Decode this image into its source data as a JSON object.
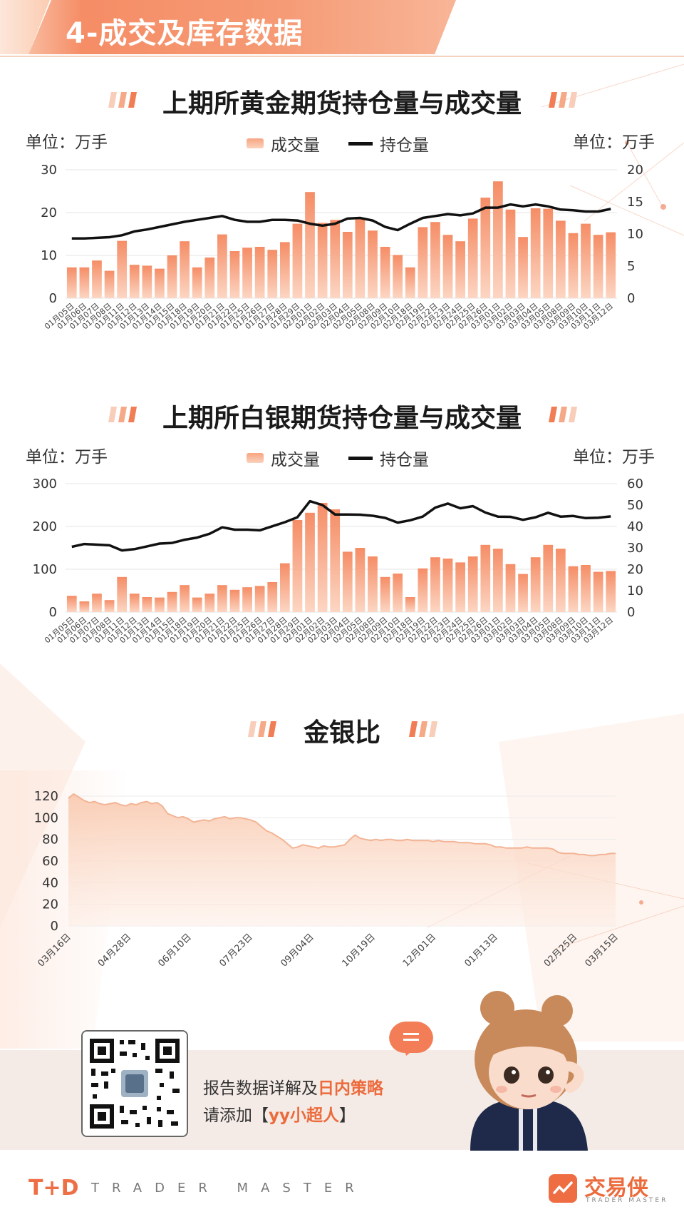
{
  "header": {
    "title": "4-成交及库存数据"
  },
  "gold": {
    "title": "上期所黄金期货持仓量与成交量",
    "unit_left": "单位：万手",
    "unit_right": "单位：万手",
    "legend_bar": "成交量",
    "legend_line": "持仓量"
  },
  "silver": {
    "title": "上期所白银期货持仓量与成交量",
    "unit_left": "单位：万手",
    "unit_right": "单位：万手",
    "legend_bar": "成交量",
    "legend_line": "持仓量"
  },
  "ratio": {
    "title": "金银比"
  },
  "promo": {
    "line1_prefix": "报告数据详解及",
    "line1_highlight": "日内策略",
    "line2_prefix": "请添加【",
    "line2_highlight": "yy小超人",
    "line2_suffix": "】"
  },
  "footer": {
    "logo": "T+D",
    "logo_sub": "TRADER MASTER",
    "brand": "交易侠",
    "brand_sub": "TRADER MASTER"
  },
  "colors": {
    "accent": "#f27d56",
    "bar_top": "#f58d66",
    "bar_bottom": "#fcd6c3",
    "line": "#111111"
  },
  "chart_data": [
    {
      "type": "bar",
      "name": "gold",
      "categories": [
        "01月05日",
        "01月06日",
        "01月07日",
        "01月08日",
        "01月11日",
        "01月12日",
        "01月13日",
        "01月14日",
        "01月15日",
        "01月18日",
        "01月19日",
        "01月20日",
        "01月21日",
        "01月22日",
        "01月25日",
        "01月26日",
        "01月27日",
        "01月28日",
        "01月29日",
        "02月01日",
        "02月02日",
        "02月03日",
        "02月04日",
        "02月05日",
        "02月08日",
        "02月09日",
        "02月10日",
        "02月18日",
        "02月19日",
        "02月22日",
        "02月23日",
        "02月24日",
        "02月25日",
        "02月26日",
        "03月01日",
        "03月02日",
        "03月03日",
        "03月04日",
        "03月05日",
        "03月08日",
        "03月09日",
        "03月10日",
        "03月11日",
        "03月12日"
      ],
      "series": [
        {
          "name": "成交量",
          "axis": "left",
          "kind": "bar",
          "values": [
            7.2,
            7.2,
            8.8,
            6.4,
            13.4,
            7.8,
            7.6,
            6.9,
            10,
            13.3,
            7.2,
            9.5,
            14.9,
            11,
            11.8,
            12,
            11.3,
            13.1,
            17.4,
            24.8,
            17.6,
            18.3,
            15.5,
            18.6,
            15.8,
            12,
            10.1,
            7.2,
            16.6,
            17.8,
            14.8,
            13.3,
            18.6,
            23.5,
            27.3,
            20.7,
            14.3,
            21,
            20.9,
            18.1,
            15.2,
            17.4,
            14.8,
            15.4
          ]
        },
        {
          "name": "持仓量",
          "axis": "right",
          "kind": "line",
          "values": [
            9.3,
            9.3,
            9.4,
            9.5,
            9.8,
            10.4,
            10.7,
            11.1,
            11.5,
            11.9,
            12.2,
            12.5,
            12.8,
            12.2,
            11.9,
            11.9,
            12.2,
            12.2,
            12.1,
            11.6,
            11.3,
            11.6,
            12.4,
            12.5,
            12.1,
            11.1,
            10.6,
            11.6,
            12.5,
            12.8,
            13.1,
            12.9,
            13.2,
            14.1,
            14.1,
            14.6,
            14.3,
            14.6,
            14.3,
            13.8,
            13.7,
            13.5,
            13.5,
            13.9
          ]
        }
      ],
      "ylim_left": [
        0,
        30
      ],
      "yticks_left": [
        0,
        10,
        20,
        30
      ],
      "ylim_right": [
        0,
        20
      ],
      "yticks_right": [
        0,
        5,
        10,
        15,
        20
      ],
      "grid": true,
      "legend": "top-center"
    },
    {
      "type": "bar",
      "name": "silver",
      "categories": [
        "01月05日",
        "01月06日",
        "01月07日",
        "01月08日",
        "01月11日",
        "01月12日",
        "01月13日",
        "01月14日",
        "01月15日",
        "01月18日",
        "01月19日",
        "01月20日",
        "01月21日",
        "01月22日",
        "01月25日",
        "01月26日",
        "01月27日",
        "01月28日",
        "01月29日",
        "02月01日",
        "02月02日",
        "02月03日",
        "02月04日",
        "02月05日",
        "02月08日",
        "02月09日",
        "02月10日",
        "02月18日",
        "02月19日",
        "02月22日",
        "02月23日",
        "02月24日",
        "02月25日",
        "02月26日",
        "03月01日",
        "03月02日",
        "03月03日",
        "03月04日",
        "03月05日",
        "03月08日",
        "03月09日",
        "03月10日",
        "03月11日",
        "03月12日"
      ],
      "series": [
        {
          "name": "成交量",
          "axis": "left",
          "kind": "bar",
          "values": [
            38,
            25,
            43,
            28,
            82,
            43,
            35,
            34,
            47,
            63,
            34,
            43,
            63,
            52,
            58,
            61,
            70,
            114,
            215,
            232,
            255,
            240,
            141,
            150,
            130,
            82,
            90,
            35,
            102,
            128,
            125,
            116,
            130,
            157,
            148,
            112,
            89,
            128,
            157,
            148,
            107,
            110,
            94,
            96
          ]
        },
        {
          "name": "持仓量",
          "axis": "right",
          "kind": "line",
          "values": [
            30.5,
            31.8,
            31.5,
            31.2,
            28.8,
            29.4,
            30.7,
            32,
            32.3,
            33.8,
            34.8,
            36.6,
            39.6,
            38.5,
            38.5,
            38.2,
            40.1,
            42,
            44.3,
            51.8,
            50,
            45.6,
            45.6,
            45.5,
            45,
            44,
            41.8,
            42.9,
            44.6,
            48.8,
            50.7,
            48.5,
            49.5,
            46.5,
            44.6,
            44.5,
            43.1,
            44.3,
            46.4,
            44.6,
            44.9,
            43.9,
            44.1,
            44.7
          ]
        }
      ],
      "ylim_left": [
        0,
        300
      ],
      "yticks_left": [
        0,
        100,
        200,
        300
      ],
      "ylim_right": [
        0,
        60
      ],
      "yticks_right": [
        0,
        10,
        20,
        30,
        40,
        50,
        60
      ],
      "grid": true,
      "legend": "top-center"
    },
    {
      "type": "area",
      "name": "gold-silver-ratio",
      "x_ticks": [
        "03月16日",
        "04月28日",
        "06月10日",
        "07月23日",
        "09月04日",
        "10月19日",
        "12月01日",
        "01月13日",
        "02月25日",
        "03月15日"
      ],
      "values": [
        118,
        122,
        119,
        116,
        114,
        115,
        113,
        112,
        113,
        114,
        112,
        111,
        113,
        112,
        114,
        115,
        113,
        114,
        111,
        104,
        102,
        100,
        101,
        99,
        96,
        97,
        98,
        97,
        99,
        100,
        101,
        99,
        100,
        100,
        99,
        98,
        96,
        92,
        88,
        86,
        83,
        80,
        76,
        72,
        73,
        75,
        74,
        73,
        72,
        74,
        73,
        73,
        74,
        75,
        80,
        84,
        81,
        80,
        79,
        80,
        79,
        80,
        80,
        79,
        79,
        80,
        79,
        79,
        79,
        79,
        78,
        79,
        78,
        78,
        78,
        77,
        77,
        77,
        76,
        76,
        76,
        75,
        73,
        73,
        72,
        72,
        72,
        72,
        73,
        72,
        72,
        72,
        72,
        71,
        68,
        67,
        67,
        67,
        66,
        66,
        65,
        65,
        66,
        66,
        67,
        67
      ],
      "ylim": [
        0,
        120
      ],
      "yticks": [
        0,
        20,
        40,
        60,
        80,
        100,
        120
      ],
      "grid": true
    }
  ]
}
